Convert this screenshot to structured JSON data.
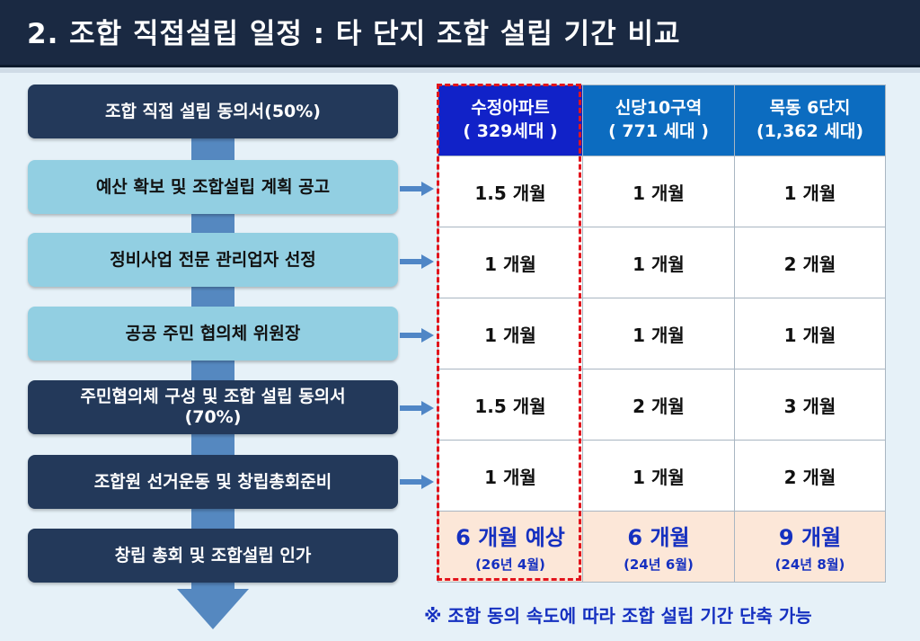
{
  "header": {
    "title": "2. 조합 직접설립 일정 : 타 단지 조합 설립 기간 비교"
  },
  "steps": [
    {
      "label": "조합 직접 설립 동의서(50%)"
    },
    {
      "label": "예산 확보 및 조합설립 계획 공고"
    },
    {
      "label": "정비사업 전문 관리업자 선정"
    },
    {
      "label": "공공 주민 협의체 위원장"
    },
    {
      "label": "주민협의체 구성 및 조합 설립 동의서",
      "label2": "(70%)"
    },
    {
      "label": "조합원 선거운동 및 창립총회준비"
    },
    {
      "label": "창립 총회 및 조합설립 인가"
    }
  ],
  "table": {
    "columns": [
      {
        "line1": "수정아파트",
        "line2": "( 329세대 )"
      },
      {
        "line1": "신당10구역",
        "line2": "( 771 세대 )"
      },
      {
        "line1": "목동 6단지",
        "line2": "(1,362 세대)"
      }
    ],
    "rows": [
      [
        "1.5 개월",
        "1 개월",
        "1 개월"
      ],
      [
        "1 개월",
        "1 개월",
        "2 개월"
      ],
      [
        "1 개월",
        "1 개월",
        "1 개월"
      ],
      [
        "1.5 개월",
        "2 개월",
        "3 개월"
      ],
      [
        "1 개월",
        "1 개월",
        "2 개월"
      ]
    ],
    "totals": [
      {
        "main": "6 개월 예상",
        "sub": "(26년 4월)"
      },
      {
        "main": "6 개월",
        "sub": "(24년 6월)"
      },
      {
        "main": "9 개월",
        "sub": "(24년 8월)"
      }
    ]
  },
  "note": "※ 조합 동의 속도에 따라 조합 설립 기간 단축 가능",
  "colors": {
    "header_bg": "#1a2942",
    "dark_step": "#23395a",
    "light_step": "#92cfe2",
    "highlight_col": "#1122c8",
    "col_header": "#0c6cc0",
    "total_bg": "#fce7d8",
    "accent_text": "#1530c0",
    "dash": "#e2141c"
  }
}
